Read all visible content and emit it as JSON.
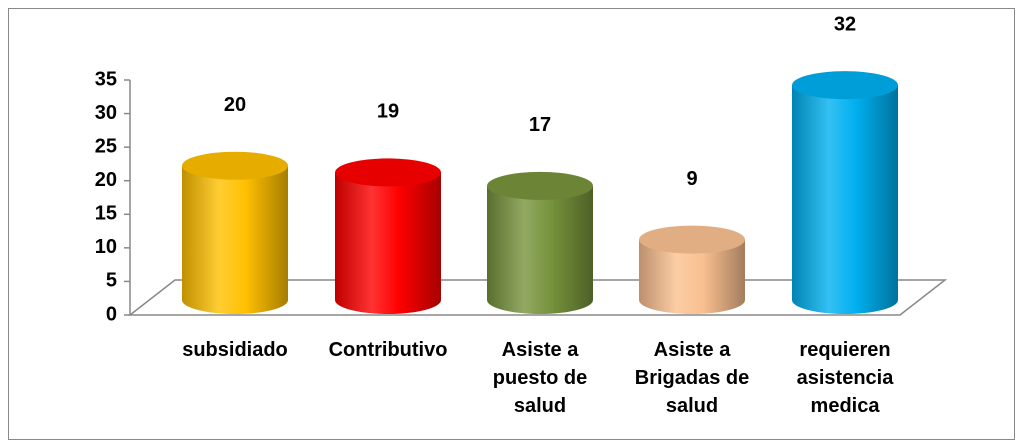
{
  "chart_data": {
    "type": "bar",
    "style": "3d-cylinder",
    "categories": [
      "subsidiado",
      "Contributivo",
      "Asiste a\npuesto de\nsalud",
      "Asiste a\nBrigadas de\nsalud",
      "requieren\nasistencia\nmedica"
    ],
    "values": [
      20,
      19,
      17,
      9,
      32
    ],
    "colors": [
      "#ffc000",
      "#ff0000",
      "#77933c",
      "#fac090",
      "#00b0f0"
    ],
    "ylim": [
      0,
      35
    ],
    "yticks": [
      0,
      5,
      10,
      15,
      20,
      25,
      30,
      35
    ],
    "grid": false
  }
}
